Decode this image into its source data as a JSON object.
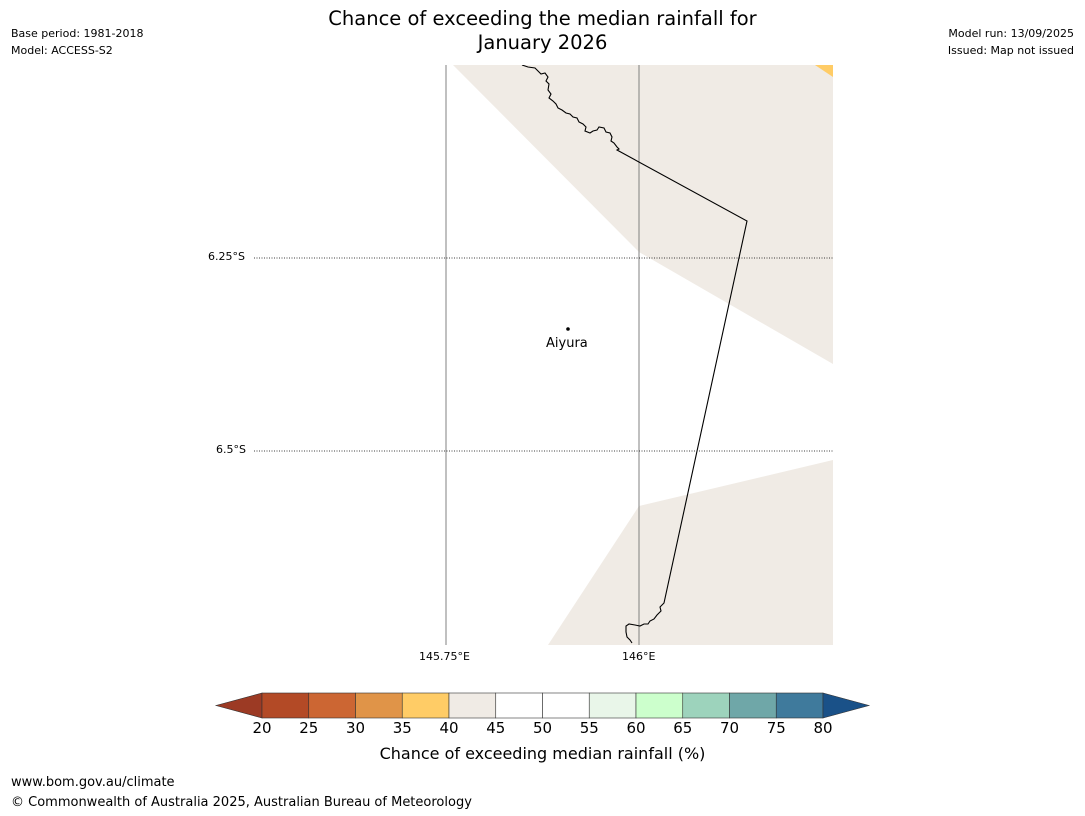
{
  "header": {
    "title_line1": "Chance of exceeding the median rainfall for",
    "title_line2": "January 2026",
    "base_period": "Base period: 1981-2018",
    "model": "Model: ACCESS-S2",
    "model_run": "Model run: 13/09/2025",
    "issued": "Issued: Map not issued"
  },
  "map": {
    "lat_labels": [
      "6.25°S",
      "6.5°S"
    ],
    "lon_labels": [
      "145.75°E",
      "146°E"
    ],
    "town": {
      "name": "Aiyura"
    },
    "colors": {
      "band_40_45": "#f0ebe5",
      "band_35_40": "#ffcc66",
      "background": "#ffffff",
      "coastline": "#000000",
      "gridline": "#808080"
    }
  },
  "colorbar": {
    "title": "Chance of exceeding median rainfall (%)",
    "ticks": [
      "20",
      "25",
      "30",
      "35",
      "40",
      "45",
      "50",
      "55",
      "60",
      "65",
      "70",
      "75",
      "80"
    ],
    "under_color": "#9c3a24",
    "over_color": "#1a5188",
    "colors": [
      "#b34a26",
      "#cc6633",
      "#e09448",
      "#ffcc66",
      "#f0ebe5",
      "#ffffff",
      "#ffffff",
      "#e9f6e9",
      "#ccffcc",
      "#9dd3bc",
      "#6fa7a8",
      "#3f7a9c"
    ]
  },
  "footer": {
    "url": "www.bom.gov.au/climate",
    "copyright": "© Commonwealth of Australia 2025, Australian Bureau of Meteorology"
  }
}
